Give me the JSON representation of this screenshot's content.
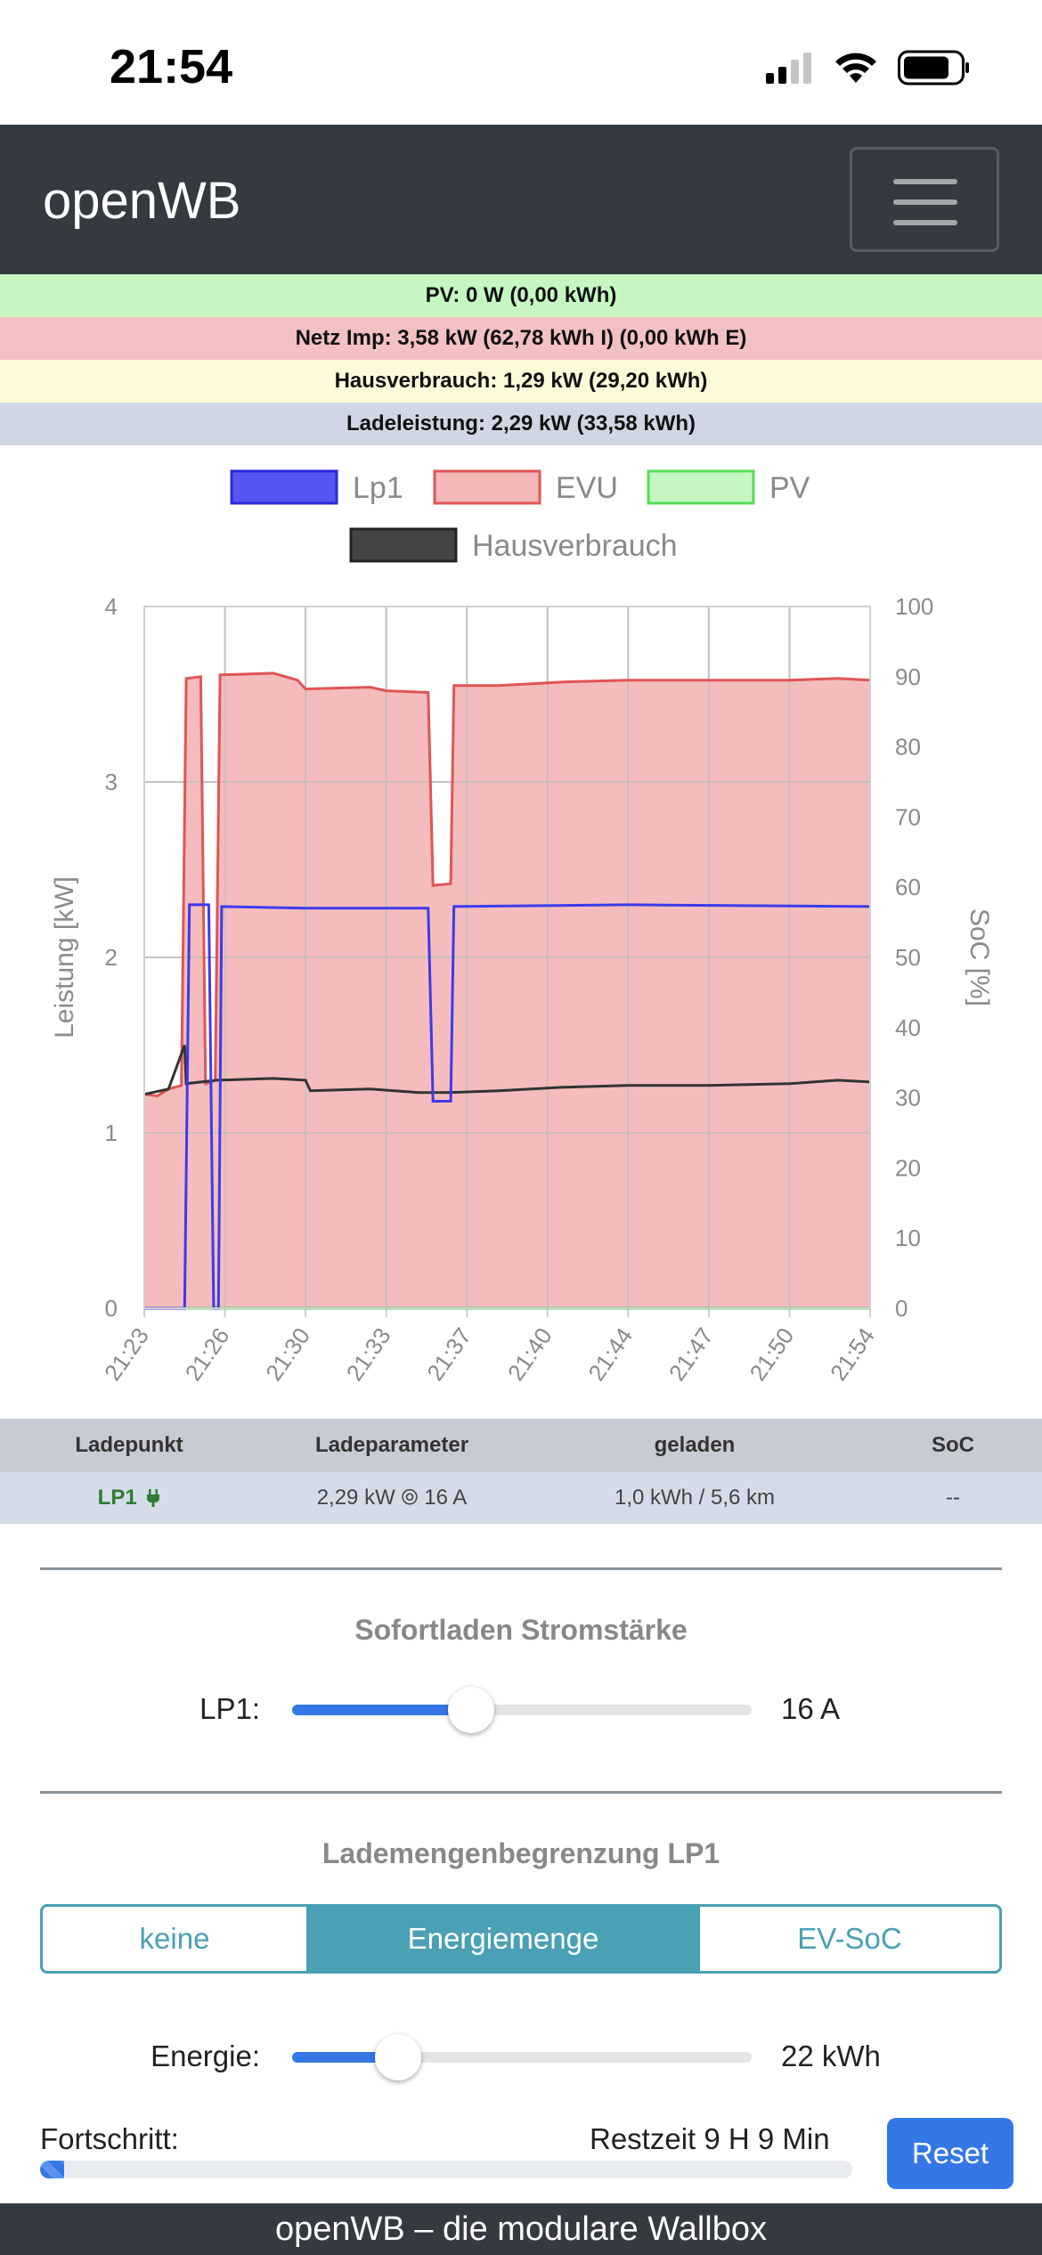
{
  "status_bar": {
    "time": "21:54"
  },
  "navbar": {
    "brand": "openWB"
  },
  "info": {
    "pv": "PV: 0 W (0,00 kWh)",
    "netz": "Netz Imp: 3,58 kW (62,78 kWh I) (0,00 kWh E)",
    "haus": "Hausverbrauch: 1,29 kW (29,20 kWh)",
    "lade": "Ladeleistung: 2,29 kW (33,58 kWh)",
    "colors": {
      "pv": "#c6f7c3",
      "netz": "#f3c1c1",
      "haus": "#fcfad9",
      "lade": "#d0d6e4"
    }
  },
  "chart_data": {
    "type": "line",
    "legend": [
      "Lp1",
      "EVU",
      "PV",
      "Hausverbrauch"
    ],
    "legend_position": "top",
    "colors": {
      "Lp1": "#3b3be8",
      "EVU": "#e05555",
      "EVU_fill": "#f3b8b8",
      "PV": "#55dd55",
      "Hausverbrauch": "#333333"
    },
    "ylabel": "Leistung [kW]",
    "y2label": "SoC [%]",
    "ylim": [
      0,
      4
    ],
    "y2lim": [
      0,
      100
    ],
    "yticks": [
      "0",
      "1",
      "2",
      "3",
      "4"
    ],
    "y2ticks": [
      "0",
      "10",
      "20",
      "30",
      "40",
      "50",
      "60",
      "70",
      "80",
      "90",
      "100"
    ],
    "xticks": [
      "21:23",
      "21:26",
      "21:30",
      "21:33",
      "21:37",
      "21:40",
      "21:44",
      "21:47",
      "21:50",
      "21:54"
    ],
    "grid": true,
    "series": [
      {
        "name": "EVU",
        "points": [
          [
            0,
            1.22
          ],
          [
            0.8,
            1.21
          ],
          [
            1.5,
            1.25
          ],
          [
            2.3,
            1.27
          ],
          [
            2.6,
            3.59
          ],
          [
            3.5,
            3.6
          ],
          [
            3.8,
            1.28
          ],
          [
            4.4,
            1.3
          ],
          [
            4.7,
            3.61
          ],
          [
            8,
            3.62
          ],
          [
            9.5,
            3.58
          ],
          [
            10,
            3.53
          ],
          [
            14,
            3.54
          ],
          [
            15,
            3.52
          ],
          [
            17.6,
            3.51
          ],
          [
            17.9,
            2.41
          ],
          [
            19,
            2.42
          ],
          [
            19.2,
            3.55
          ],
          [
            22,
            3.55
          ],
          [
            24,
            3.56
          ],
          [
            26,
            3.57
          ],
          [
            30,
            3.58
          ],
          [
            35,
            3.58
          ],
          [
            40,
            3.58
          ],
          [
            43,
            3.59
          ],
          [
            45,
            3.58
          ]
        ]
      },
      {
        "name": "Lp1",
        "points": [
          [
            0,
            0
          ],
          [
            2.5,
            0
          ],
          [
            2.8,
            2.3
          ],
          [
            4,
            2.3
          ],
          [
            4.3,
            0
          ],
          [
            4.6,
            0
          ],
          [
            4.8,
            2.29
          ],
          [
            10,
            2.28
          ],
          [
            17.6,
            2.28
          ],
          [
            17.9,
            1.18
          ],
          [
            19,
            1.18
          ],
          [
            19.2,
            2.29
          ],
          [
            30,
            2.3
          ],
          [
            45,
            2.29
          ]
        ]
      },
      {
        "name": "Hausverbrauch",
        "points": [
          [
            0,
            1.22
          ],
          [
            1.5,
            1.25
          ],
          [
            2.5,
            1.5
          ],
          [
            2.6,
            1.28
          ],
          [
            4.5,
            1.3
          ],
          [
            8,
            1.31
          ],
          [
            10,
            1.3
          ],
          [
            10.3,
            1.24
          ],
          [
            14,
            1.25
          ],
          [
            17,
            1.23
          ],
          [
            19,
            1.23
          ],
          [
            22,
            1.24
          ],
          [
            26,
            1.26
          ],
          [
            30,
            1.27
          ],
          [
            35,
            1.27
          ],
          [
            40,
            1.28
          ],
          [
            43,
            1.3
          ],
          [
            45,
            1.29
          ]
        ]
      },
      {
        "name": "PV",
        "points": [
          [
            0,
            0
          ],
          [
            45,
            0
          ]
        ]
      }
    ],
    "x_total_minutes": 31
  },
  "table": {
    "headers": [
      "Ladepunkt",
      "Ladeparameter",
      "geladen",
      "SoC"
    ],
    "row": {
      "lp": "LP1",
      "param": "2,29 kW ⦾ 16 A",
      "geladen": "1,0 kWh / 5,6 km",
      "soc": "--"
    }
  },
  "sofortladen": {
    "title": "Sofortladen Stromstärke",
    "label": "LP1:",
    "value": "16 A",
    "fraction": 0.39
  },
  "lademengen": {
    "title": "Lademengenbegrenzung LP1",
    "buttons": [
      "keine",
      "Energiemenge",
      "EV-SoC"
    ],
    "active": "Energiemenge",
    "energie_label": "Energie:",
    "energie_value": "22 kWh",
    "energie_fraction": 0.23
  },
  "progress": {
    "label": "Fortschritt:",
    "restzeit": "Restzeit 9 H 9 Min",
    "percent": 3,
    "reset": "Reset"
  },
  "footer": {
    "text": "openWB – die modulare Wallbox"
  }
}
